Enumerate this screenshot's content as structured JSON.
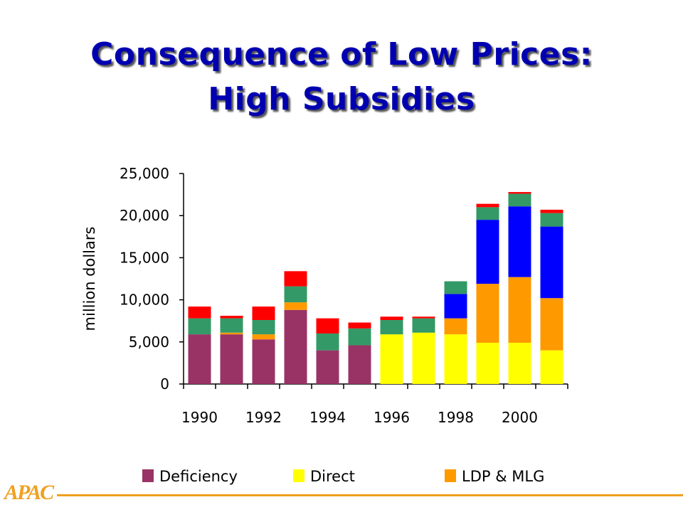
{
  "title": {
    "line1": "Consequence of Low Prices:",
    "line2": "High Subsidies"
  },
  "logo_text": "APAC",
  "chart_data": {
    "type": "bar",
    "stacked": true,
    "ylabel": "million dollars",
    "ylim": [
      0,
      25000
    ],
    "yticks": [
      0,
      5000,
      10000,
      15000,
      20000,
      25000
    ],
    "ytick_labels": [
      "0",
      "5,000",
      "10,000",
      "15,000",
      "20,000",
      "25,000"
    ],
    "categories": [
      "1990",
      "1991",
      "1992",
      "1993",
      "1994",
      "1995",
      "1996",
      "1997",
      "1998",
      "1999",
      "2000",
      "2001"
    ],
    "xtick_labels": [
      "1990",
      "",
      "1992",
      "",
      "1994",
      "",
      "1996",
      "",
      "1998",
      "",
      "2000",
      ""
    ],
    "series": [
      {
        "name": "Deficiency",
        "color": "#993366",
        "values": [
          5900,
          5900,
          5300,
          8800,
          4000,
          4600,
          0,
          0,
          0,
          0,
          0,
          0
        ]
      },
      {
        "name": "Direct",
        "color": "#ffff00",
        "values": [
          0,
          0,
          0,
          0,
          0,
          0,
          5900,
          6100,
          5900,
          4900,
          4900,
          4000
        ]
      },
      {
        "name": "LDP & MLG",
        "color": "#ff9900",
        "values": [
          0,
          200,
          600,
          900,
          0,
          0,
          0,
          0,
          1900,
          7000,
          7800,
          6200
        ]
      },
      {
        "name": "",
        "color": "#0000ff",
        "values": [
          0,
          0,
          0,
          0,
          0,
          0,
          0,
          0,
          2900,
          7600,
          8400,
          8500
        ]
      },
      {
        "name": "",
        "color": "#339966",
        "values": [
          1900,
          1700,
          1700,
          1900,
          2000,
          2000,
          1700,
          1700,
          1500,
          1500,
          1500,
          1600
        ]
      },
      {
        "name": "",
        "color": "#ff0000",
        "values": [
          1400,
          300,
          1600,
          1800,
          1800,
          700,
          400,
          200,
          0,
          400,
          200,
          400
        ]
      }
    ],
    "legend": [
      "Deficiency",
      "Direct",
      "LDP & MLG"
    ],
    "legend_placement": "bottom",
    "grid": false
  }
}
